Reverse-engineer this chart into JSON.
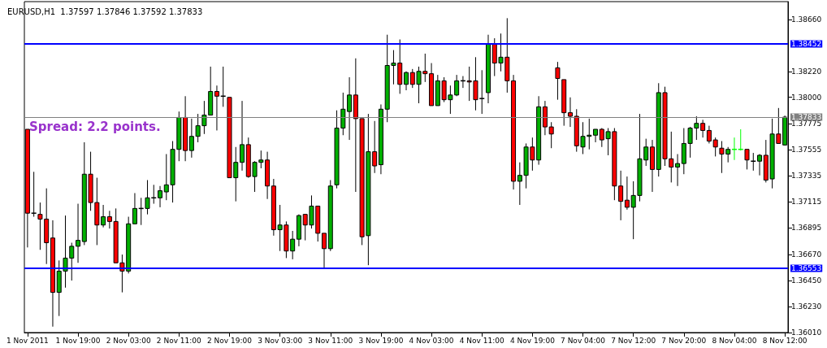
{
  "chart_data": {
    "type": "candlestick",
    "title": "EURUSD,H1  1.37597 1.37846 1.37592 1.37833",
    "annotations": [
      "Spread: 2.2 points."
    ],
    "categories": [
      "1 Nov 2011",
      null,
      null,
      null,
      null,
      null,
      null,
      null,
      "1 Nov 19:00",
      null,
      null,
      null,
      null,
      null,
      null,
      null,
      "2 Nov 03:00",
      null,
      null,
      null,
      null,
      null,
      null,
      null,
      "2 Nov 11:00",
      null,
      null,
      null,
      null,
      null,
      null,
      null,
      "2 Nov 19:00",
      null,
      null,
      null,
      null,
      null,
      null,
      null,
      "3 Nov 03:00",
      null,
      null,
      null,
      null,
      null,
      null,
      null,
      "3 Nov 11:00",
      null,
      null,
      null,
      null,
      null,
      null,
      null,
      "3 Nov 19:00",
      null,
      null,
      null,
      null,
      null,
      null,
      null,
      "4 Nov 03:00",
      null,
      null,
      null,
      null,
      null,
      null,
      null,
      "4 Nov 11:00",
      null,
      null,
      null,
      null,
      null,
      null,
      null,
      "4 Nov 19:00",
      null,
      null,
      null,
      null,
      null,
      null,
      null,
      "7 Nov 04:00",
      null,
      null,
      null,
      null,
      null,
      null,
      null,
      "7 Nov 12:00",
      null,
      null,
      null,
      null,
      null,
      null,
      null,
      "7 Nov 20:00",
      null,
      null,
      null,
      null,
      null,
      null,
      null,
      "8 Nov 04:00",
      null,
      null,
      null,
      null,
      null,
      null,
      null,
      "8 Nov 12:00"
    ],
    "ohlc": [
      [
        1.3773,
        1.3773,
        1.3673,
        1.3702
      ],
      [
        1.3702,
        1.3737,
        1.3699,
        1.3702
      ],
      [
        1.3701,
        1.3711,
        1.3671,
        1.3697
      ],
      [
        1.3697,
        1.3723,
        1.3659,
        1.3677
      ],
      [
        1.3681,
        1.3696,
        1.3606,
        1.3635
      ],
      [
        1.3635,
        1.3662,
        1.3615,
        1.3653
      ],
      [
        1.3653,
        1.37,
        1.3639,
        1.3664
      ],
      [
        1.3664,
        1.3677,
        1.3645,
        1.3674
      ],
      [
        1.3674,
        1.371,
        1.366,
        1.3679
      ],
      [
        1.3678,
        1.3762,
        1.3675,
        1.3735
      ],
      [
        1.3735,
        1.3754,
        1.3704,
        1.3711
      ],
      [
        1.3711,
        1.3732,
        1.3675,
        1.3692
      ],
      [
        1.3692,
        1.3709,
        1.369,
        1.3699
      ],
      [
        1.3699,
        1.3704,
        1.3689,
        1.3695
      ],
      [
        1.3695,
        1.3706,
        1.366,
        1.366
      ],
      [
        1.366,
        1.3667,
        1.3635,
        1.3653
      ],
      [
        1.3653,
        1.3699,
        1.3651,
        1.3693
      ],
      [
        1.3693,
        1.3719,
        1.3693,
        1.3706
      ],
      [
        1.3706,
        1.3715,
        1.3692,
        1.3706
      ],
      [
        1.3706,
        1.373,
        1.3701,
        1.3715
      ],
      [
        1.3715,
        1.3726,
        1.371,
        1.3715
      ],
      [
        1.3715,
        1.3725,
        1.3707,
        1.3721
      ],
      [
        1.372,
        1.3752,
        1.3713,
        1.3726
      ],
      [
        1.3726,
        1.3763,
        1.3711,
        1.3756
      ],
      [
        1.3756,
        1.3788,
        1.3746,
        1.3783
      ],
      [
        1.3783,
        1.3801,
        1.3746,
        1.3755
      ],
      [
        1.3755,
        1.3782,
        1.3749,
        1.3767
      ],
      [
        1.3767,
        1.3786,
        1.3762,
        1.3776
      ],
      [
        1.3776,
        1.3797,
        1.3769,
        1.3785
      ],
      [
        1.3785,
        1.3826,
        1.3785,
        1.3805
      ],
      [
        1.3805,
        1.381,
        1.3772,
        1.3801
      ],
      [
        1.3801,
        1.3826,
        1.3792,
        1.3801
      ],
      [
        1.38,
        1.38,
        1.3732,
        1.3732
      ],
      [
        1.3732,
        1.3758,
        1.3712,
        1.3745
      ],
      [
        1.3745,
        1.3797,
        1.3738,
        1.376
      ],
      [
        1.376,
        1.3766,
        1.3732,
        1.3733
      ],
      [
        1.3733,
        1.3746,
        1.372,
        1.3745
      ],
      [
        1.3745,
        1.3755,
        1.374,
        1.3747
      ],
      [
        1.3747,
        1.3754,
        1.3714,
        1.3725
      ],
      [
        1.3725,
        1.3731,
        1.3683,
        1.3688
      ],
      [
        1.3688,
        1.3709,
        1.367,
        1.3692
      ],
      [
        1.3692,
        1.3695,
        1.3664,
        1.367
      ],
      [
        1.367,
        1.3687,
        1.3663,
        1.368
      ],
      [
        1.368,
        1.3701,
        1.3674,
        1.37
      ],
      [
        1.3701,
        1.3701,
        1.3679,
        1.3692
      ],
      [
        1.3692,
        1.3717,
        1.3689,
        1.3708
      ],
      [
        1.3708,
        1.3708,
        1.3678,
        1.3685
      ],
      [
        1.3685,
        1.3685,
        1.3656,
        1.3672
      ],
      [
        1.3672,
        1.373,
        1.367,
        1.3725
      ],
      [
        1.3726,
        1.3789,
        1.3723,
        1.3774
      ],
      [
        1.3774,
        1.3804,
        1.3768,
        1.379
      ],
      [
        1.3788,
        1.3817,
        1.3764,
        1.3802
      ],
      [
        1.3802,
        1.3833,
        1.372,
        1.3782
      ],
      [
        1.3782,
        1.3782,
        1.3675,
        1.3682
      ],
      [
        1.3683,
        1.3786,
        1.3658,
        1.3754
      ],
      [
        1.3754,
        1.378,
        1.3736,
        1.3742
      ],
      [
        1.3743,
        1.3794,
        1.3735,
        1.379
      ],
      [
        1.379,
        1.3853,
        1.3779,
        1.3827
      ],
      [
        1.3827,
        1.384,
        1.3811,
        1.3829
      ],
      [
        1.3829,
        1.3849,
        1.3803,
        1.3811
      ],
      [
        1.3811,
        1.3822,
        1.3806,
        1.3821
      ],
      [
        1.3821,
        1.3824,
        1.3808,
        1.3811
      ],
      [
        1.3811,
        1.3826,
        1.3795,
        1.3822
      ],
      [
        1.3822,
        1.3837,
        1.3813,
        1.382
      ],
      [
        1.382,
        1.3829,
        1.3793,
        1.3793
      ],
      [
        1.3793,
        1.3819,
        1.3793,
        1.3814
      ],
      [
        1.3814,
        1.3817,
        1.3796,
        1.3798
      ],
      [
        1.3798,
        1.381,
        1.3786,
        1.3802
      ],
      [
        1.3802,
        1.3819,
        1.3801,
        1.3814
      ],
      [
        1.3814,
        1.3818,
        1.3808,
        1.3814
      ],
      [
        1.3814,
        1.3826,
        1.3797,
        1.3813
      ],
      [
        1.3814,
        1.3834,
        1.3789,
        1.3798
      ],
      [
        1.3799,
        1.3823,
        1.3786,
        1.3799
      ],
      [
        1.3804,
        1.3853,
        1.3795,
        1.3845
      ],
      [
        1.3845,
        1.385,
        1.3818,
        1.3829
      ],
      [
        1.3829,
        1.3854,
        1.3822,
        1.3834
      ],
      [
        1.3834,
        1.3867,
        1.3804,
        1.3814
      ],
      [
        1.3814,
        1.3819,
        1.3722,
        1.3729
      ],
      [
        1.3729,
        1.3745,
        1.3709,
        1.3734
      ],
      [
        1.3734,
        1.3761,
        1.3723,
        1.3758
      ],
      [
        1.3758,
        1.3766,
        1.3738,
        1.3747
      ],
      [
        1.3747,
        1.3801,
        1.3743,
        1.3792
      ],
      [
        1.3792,
        1.3797,
        1.3768,
        1.3775
      ],
      [
        1.3775,
        1.3779,
        1.3757,
        1.3769
      ],
      [
        1.3825,
        1.383,
        1.3798,
        1.3816
      ],
      [
        1.3815,
        1.3815,
        1.3776,
        1.3787
      ],
      [
        1.3787,
        1.38,
        1.3775,
        1.3784
      ],
      [
        1.3784,
        1.379,
        1.3754,
        1.3759
      ],
      [
        1.3758,
        1.3779,
        1.3752,
        1.3767
      ],
      [
        1.3767,
        1.3782,
        1.3756,
        1.3768
      ],
      [
        1.3768,
        1.3773,
        1.3762,
        1.3773
      ],
      [
        1.3773,
        1.3774,
        1.3758,
        1.3764
      ],
      [
        1.3765,
        1.3774,
        1.3751,
        1.3771
      ],
      [
        1.3771,
        1.3774,
        1.3713,
        1.3725
      ],
      [
        1.3725,
        1.3738,
        1.3696,
        1.3712
      ],
      [
        1.3713,
        1.3733,
        1.3705,
        1.3707
      ],
      [
        1.3707,
        1.3729,
        1.368,
        1.3717
      ],
      [
        1.3717,
        1.3786,
        1.3712,
        1.3748
      ],
      [
        1.3747,
        1.3765,
        1.3742,
        1.3758
      ],
      [
        1.3758,
        1.3764,
        1.372,
        1.3739
      ],
      [
        1.3739,
        1.3812,
        1.3733,
        1.3804
      ],
      [
        1.3804,
        1.3809,
        1.3742,
        1.3748
      ],
      [
        1.3748,
        1.3771,
        1.3728,
        1.3741
      ],
      [
        1.3741,
        1.3752,
        1.3725,
        1.3744
      ],
      [
        1.3744,
        1.3774,
        1.3735,
        1.3761
      ],
      [
        1.3761,
        1.3775,
        1.3749,
        1.3774
      ],
      [
        1.3774,
        1.3784,
        1.3764,
        1.3778
      ],
      [
        1.3778,
        1.3781,
        1.3766,
        1.3772
      ],
      [
        1.3772,
        1.3776,
        1.3761,
        1.3763
      ],
      [
        1.3764,
        1.3766,
        1.375,
        1.3758
      ],
      [
        1.3757,
        1.3763,
        1.3736,
        1.3752
      ],
      [
        1.3752,
        1.3758,
        1.3745,
        1.3756
      ],
      [
        1.3756,
        1.3766,
        1.3747,
        1.3756
      ],
      [
        1.3756,
        1.3773,
        1.3755,
        1.3756
      ],
      [
        1.3756,
        1.3756,
        1.3739,
        1.3747
      ],
      [
        1.3746,
        1.3753,
        1.3738,
        1.3746
      ],
      [
        1.3746,
        1.3752,
        1.3734,
        1.3751
      ],
      [
        1.3751,
        1.3764,
        1.3728,
        1.373
      ],
      [
        1.3731,
        1.3782,
        1.3723,
        1.3769
      ],
      [
        1.3769,
        1.3791,
        1.3761,
        1.3761
      ],
      [
        1.37597,
        1.37846,
        1.37592,
        1.37833
      ]
    ],
    "colors": [
      "#ff0000",
      "#000000",
      "#ff0000",
      "#ff0000",
      "#ff0000",
      "#00b000",
      "#00b000",
      "#00b000",
      "#00b000",
      "#00b000",
      "#ff0000",
      "#ff0000",
      "#00b000",
      "#ff0000",
      "#ff0000",
      "#ff0000",
      "#00b000",
      "#00b000",
      "#000000",
      "#00b000",
      "#000000",
      "#00b000",
      "#00b000",
      "#00b000",
      "#00b000",
      "#ff0000",
      "#00b000",
      "#00b000",
      "#00b000",
      "#00b000",
      "#ff0000",
      "#000000",
      "#ff0000",
      "#00b000",
      "#00b000",
      "#ff0000",
      "#00b000",
      "#00b000",
      "#ff0000",
      "#ff0000",
      "#00b000",
      "#ff0000",
      "#00b000",
      "#00b000",
      "#ff0000",
      "#00b000",
      "#ff0000",
      "#ff0000",
      "#00b000",
      "#00b000",
      "#00b000",
      "#00b000",
      "#ff0000",
      "#ff0000",
      "#00b000",
      "#ff0000",
      "#00b000",
      "#00b000",
      "#00b000",
      "#ff0000",
      "#00b000",
      "#ff0000",
      "#00b000",
      "#ff0000",
      "#ff0000",
      "#00b000",
      "#ff0000",
      "#00b000",
      "#00b000",
      "#000000",
      "#ff0000",
      "#ff0000",
      "#000000",
      "#00b000",
      "#ff0000",
      "#00b000",
      "#ff0000",
      "#ff0000",
      "#00b000",
      "#00b000",
      "#ff0000",
      "#00b000",
      "#ff0000",
      "#ff0000",
      "#ff0000",
      "#ff0000",
      "#ff0000",
      "#ff0000",
      "#00b000",
      "#00b000",
      "#00b000",
      "#ff0000",
      "#00b000",
      "#ff0000",
      "#ff0000",
      "#ff0000",
      "#00b000",
      "#00b000",
      "#00b000",
      "#ff0000",
      "#00b000",
      "#ff0000",
      "#ff0000",
      "#00b000",
      "#00b000",
      "#00b000",
      "#00b000",
      "#ff0000",
      "#ff0000",
      "#ff0000",
      "#ff0000",
      "#00b000",
      "#00ff00",
      "#00ff00",
      "#ff0000",
      "#000000",
      "#00b000",
      "#ff0000",
      "#00b000",
      "#ff0000",
      "#00b000"
    ],
    "ylim": [
      1.3601,
      1.3881
    ],
    "yticks": [
      {
        "value": 1.3866,
        "label": "1.38660"
      },
      {
        "value": 1.3822,
        "label": "1.38220"
      },
      {
        "value": 1.38,
        "label": "1.38000"
      },
      {
        "value": 1.37775,
        "label": "1.37775"
      },
      {
        "value": 1.37555,
        "label": "1.37555"
      },
      {
        "value": 1.37335,
        "label": "1.37335"
      },
      {
        "value": 1.37115,
        "label": "1.37115"
      },
      {
        "value": 1.36895,
        "label": "1.36895"
      },
      {
        "value": 1.3667,
        "label": "1.36670"
      },
      {
        "value": 1.3645,
        "label": "1.36450"
      },
      {
        "value": 1.3623,
        "label": "1.36230"
      },
      {
        "value": 1.3601,
        "label": "1.36010"
      }
    ],
    "ref_lines": [
      {
        "axis": "y",
        "value": 1.38452,
        "label": "1.38452",
        "color": "#0000ff"
      },
      {
        "axis": "y",
        "value": 1.36553,
        "label": "1.36553",
        "color": "#0000ff"
      },
      {
        "axis": "y",
        "value": 1.37833,
        "label": "1.37833",
        "color": "#808080"
      }
    ]
  }
}
